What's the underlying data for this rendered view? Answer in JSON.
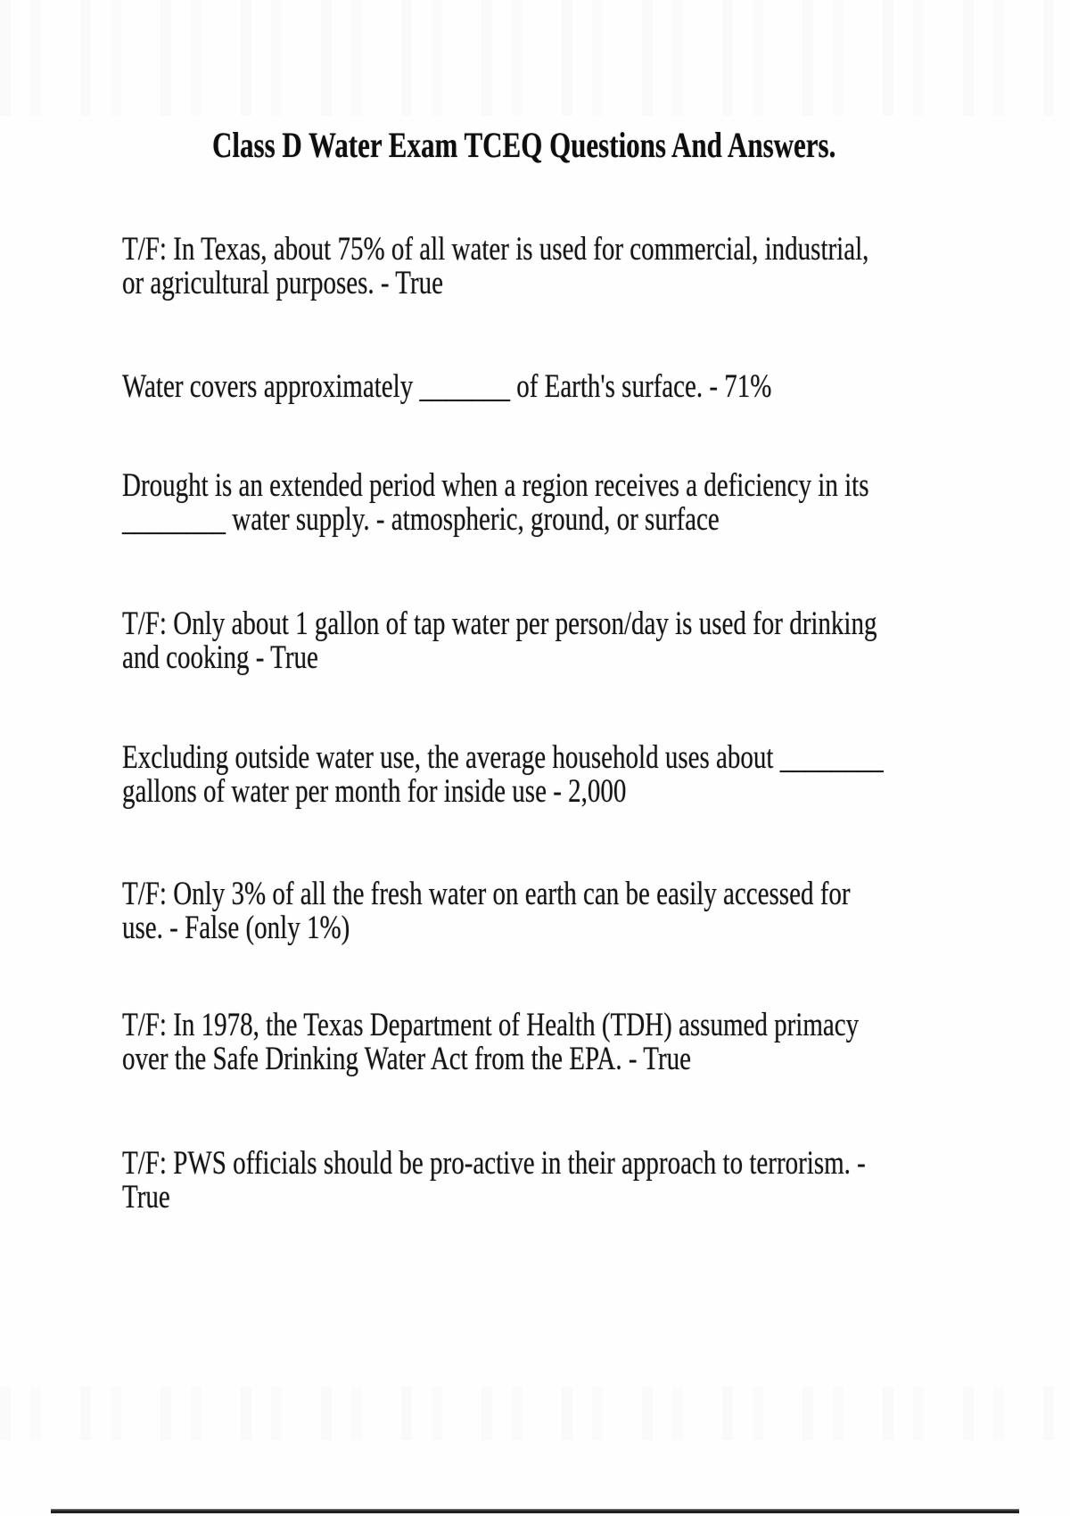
{
  "page": {
    "title": "Class D Water Exam TCEQ Questions And Answers.",
    "paragraphs": [
      {
        "lines": [
          "T/F: In Texas, about 75% of all water is used for commercial, industrial,",
          "or agricultural purposes. - True"
        ]
      },
      {
        "lines": [
          "Water covers approximately _______ of Earth's surface. - 71%"
        ]
      },
      {
        "lines": [
          "Drought is an extended period when a region receives a deficiency in its",
          "________ water supply. - atmospheric, ground, or surface"
        ]
      },
      {
        "lines": [
          "T/F: Only about 1 gallon of tap water per person/day is used for drinking",
          "and cooking - True"
        ]
      },
      {
        "lines": [
          "Excluding outside water use, the average household uses about ________",
          "gallons of water per month for inside use - 2,000"
        ]
      },
      {
        "lines": [
          "T/F: Only 3% of all the fresh water on earth can be easily accessed for",
          "use. - False (only 1%)"
        ]
      },
      {
        "lines": [
          "T/F: In 1978, the Texas Department of Health (TDH) assumed primacy",
          "over the Safe Drinking Water Act from the EPA. - True"
        ]
      },
      {
        "lines": [
          "T/F: PWS officials should be pro-active in their approach to terrorism. -",
          "True"
        ]
      }
    ],
    "colors": {
      "background": "#fefefe",
      "text": "#141414",
      "bottom_rule": "#1a1a1a"
    }
  }
}
